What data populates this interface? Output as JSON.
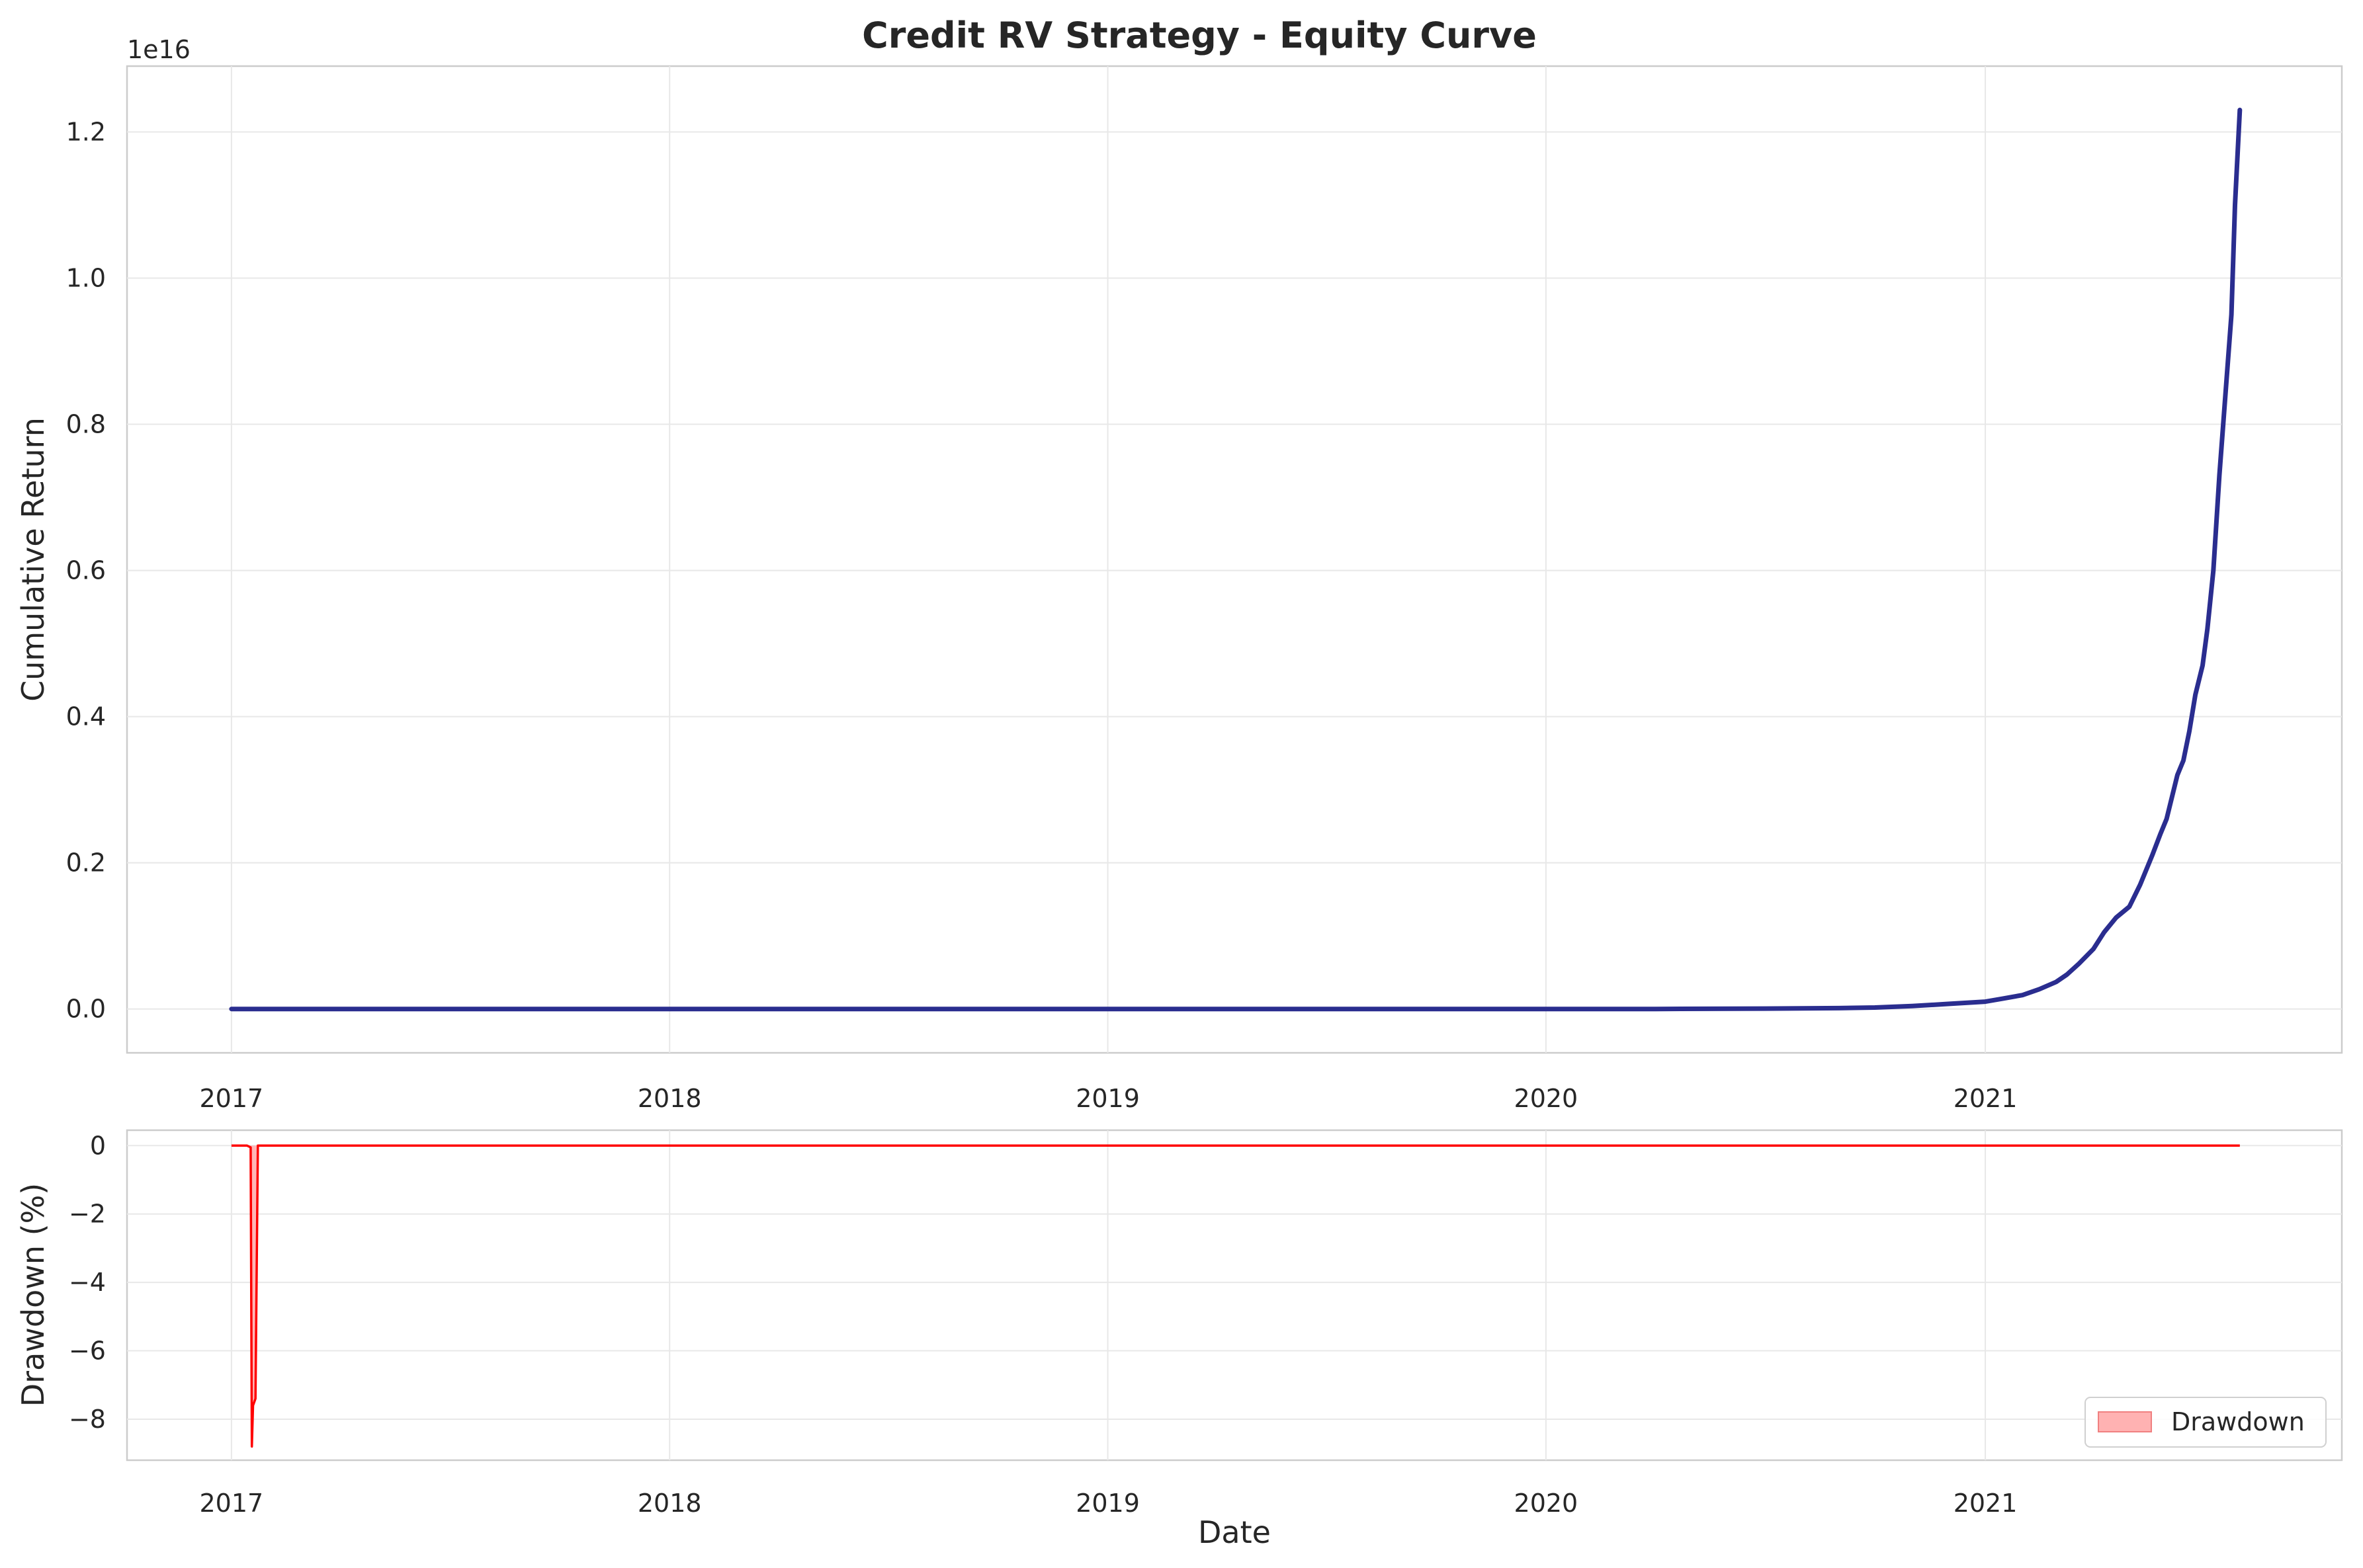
{
  "figure": {
    "title": "Credit RV Strategy - Equity Curve"
  },
  "chart_data": [
    {
      "type": "line",
      "title": "Credit RV Strategy - Equity Curve",
      "xlabel": "",
      "ylabel": "Cumulative Return",
      "offset_label": "1e16",
      "x_ticks": [
        "2017",
        "2018",
        "2019",
        "2020",
        "2021"
      ],
      "y_ticks": [
        "0.0",
        "0.2",
        "0.4",
        "0.6",
        "0.8",
        "1.0",
        "1.2"
      ],
      "y_tick_values": [
        0.0,
        0.2,
        0.4,
        0.6,
        0.8,
        1.0,
        1.2
      ],
      "ylim": [
        -0.06,
        1.29
      ],
      "xlim": [
        "2016-10-06",
        "2021-10-25"
      ],
      "grid": true,
      "color": "#2a2d8f",
      "y_units": "1e16",
      "series": [
        {
          "x": [
            "2017-01-01",
            "2017-06-01",
            "2018-01-01",
            "2018-06-01",
            "2019-01-01",
            "2019-06-01",
            "2020-01-01",
            "2020-04-01",
            "2020-07-01",
            "2020-09-01",
            "2020-10-01",
            "2020-11-01",
            "2020-12-01",
            "2021-01-01",
            "2021-01-15",
            "2021-02-01",
            "2021-02-15",
            "2021-03-01",
            "2021-03-10",
            "2021-03-20",
            "2021-04-01",
            "2021-04-10",
            "2021-04-20",
            "2021-05-01",
            "2021-05-10",
            "2021-05-20",
            "2021-05-27",
            "2021-06-01",
            "2021-06-10",
            "2021-06-15",
            "2021-06-20",
            "2021-06-25",
            "2021-07-01",
            "2021-07-05",
            "2021-07-10",
            "2021-07-15",
            "2021-07-20",
            "2021-07-25",
            "2021-07-28",
            "2021-08-01"
          ],
          "y": [
            0.0,
            0.0,
            0.0,
            0.0,
            0.0,
            0.0,
            0.0,
            0.0,
            0.0005,
            0.0012,
            0.002,
            0.004,
            0.007,
            0.01,
            0.014,
            0.019,
            0.027,
            0.037,
            0.047,
            0.062,
            0.082,
            0.105,
            0.125,
            0.14,
            0.17,
            0.21,
            0.24,
            0.26,
            0.32,
            0.34,
            0.38,
            0.43,
            0.47,
            0.52,
            0.6,
            0.73,
            0.84,
            0.95,
            1.1,
            1.23
          ]
        }
      ]
    },
    {
      "type": "area",
      "title": "",
      "xlabel": "Date",
      "ylabel": "Drawdown (%)",
      "x_ticks": [
        "2017",
        "2018",
        "2019",
        "2020",
        "2021"
      ],
      "y_ticks": [
        "0",
        "−2",
        "−4",
        "−6",
        "−8"
      ],
      "y_tick_values": [
        0,
        -2,
        -4,
        -6,
        -8
      ],
      "ylim": [
        -9.2,
        0.45
      ],
      "xlim": [
        "2016-10-06",
        "2021-10-25"
      ],
      "grid": true,
      "line_color": "#ff0000",
      "fill_color": "#ffb2b2",
      "legend": {
        "position": "lower-right",
        "entries": [
          "Drawdown"
        ]
      },
      "series": [
        {
          "name": "Drawdown",
          "x": [
            "2017-01-01",
            "2017-01-14",
            "2017-01-17",
            "2017-01-18",
            "2017-01-19",
            "2017-01-21",
            "2017-01-23",
            "2017-02-01",
            "2017-06-01",
            "2018-01-01",
            "2019-01-01",
            "2020-01-01",
            "2021-01-01",
            "2021-08-01"
          ],
          "y": [
            0,
            0,
            -0.05,
            -8.8,
            -7.6,
            -7.4,
            0,
            0,
            0,
            0,
            0,
            0,
            0,
            0
          ]
        }
      ]
    }
  ]
}
